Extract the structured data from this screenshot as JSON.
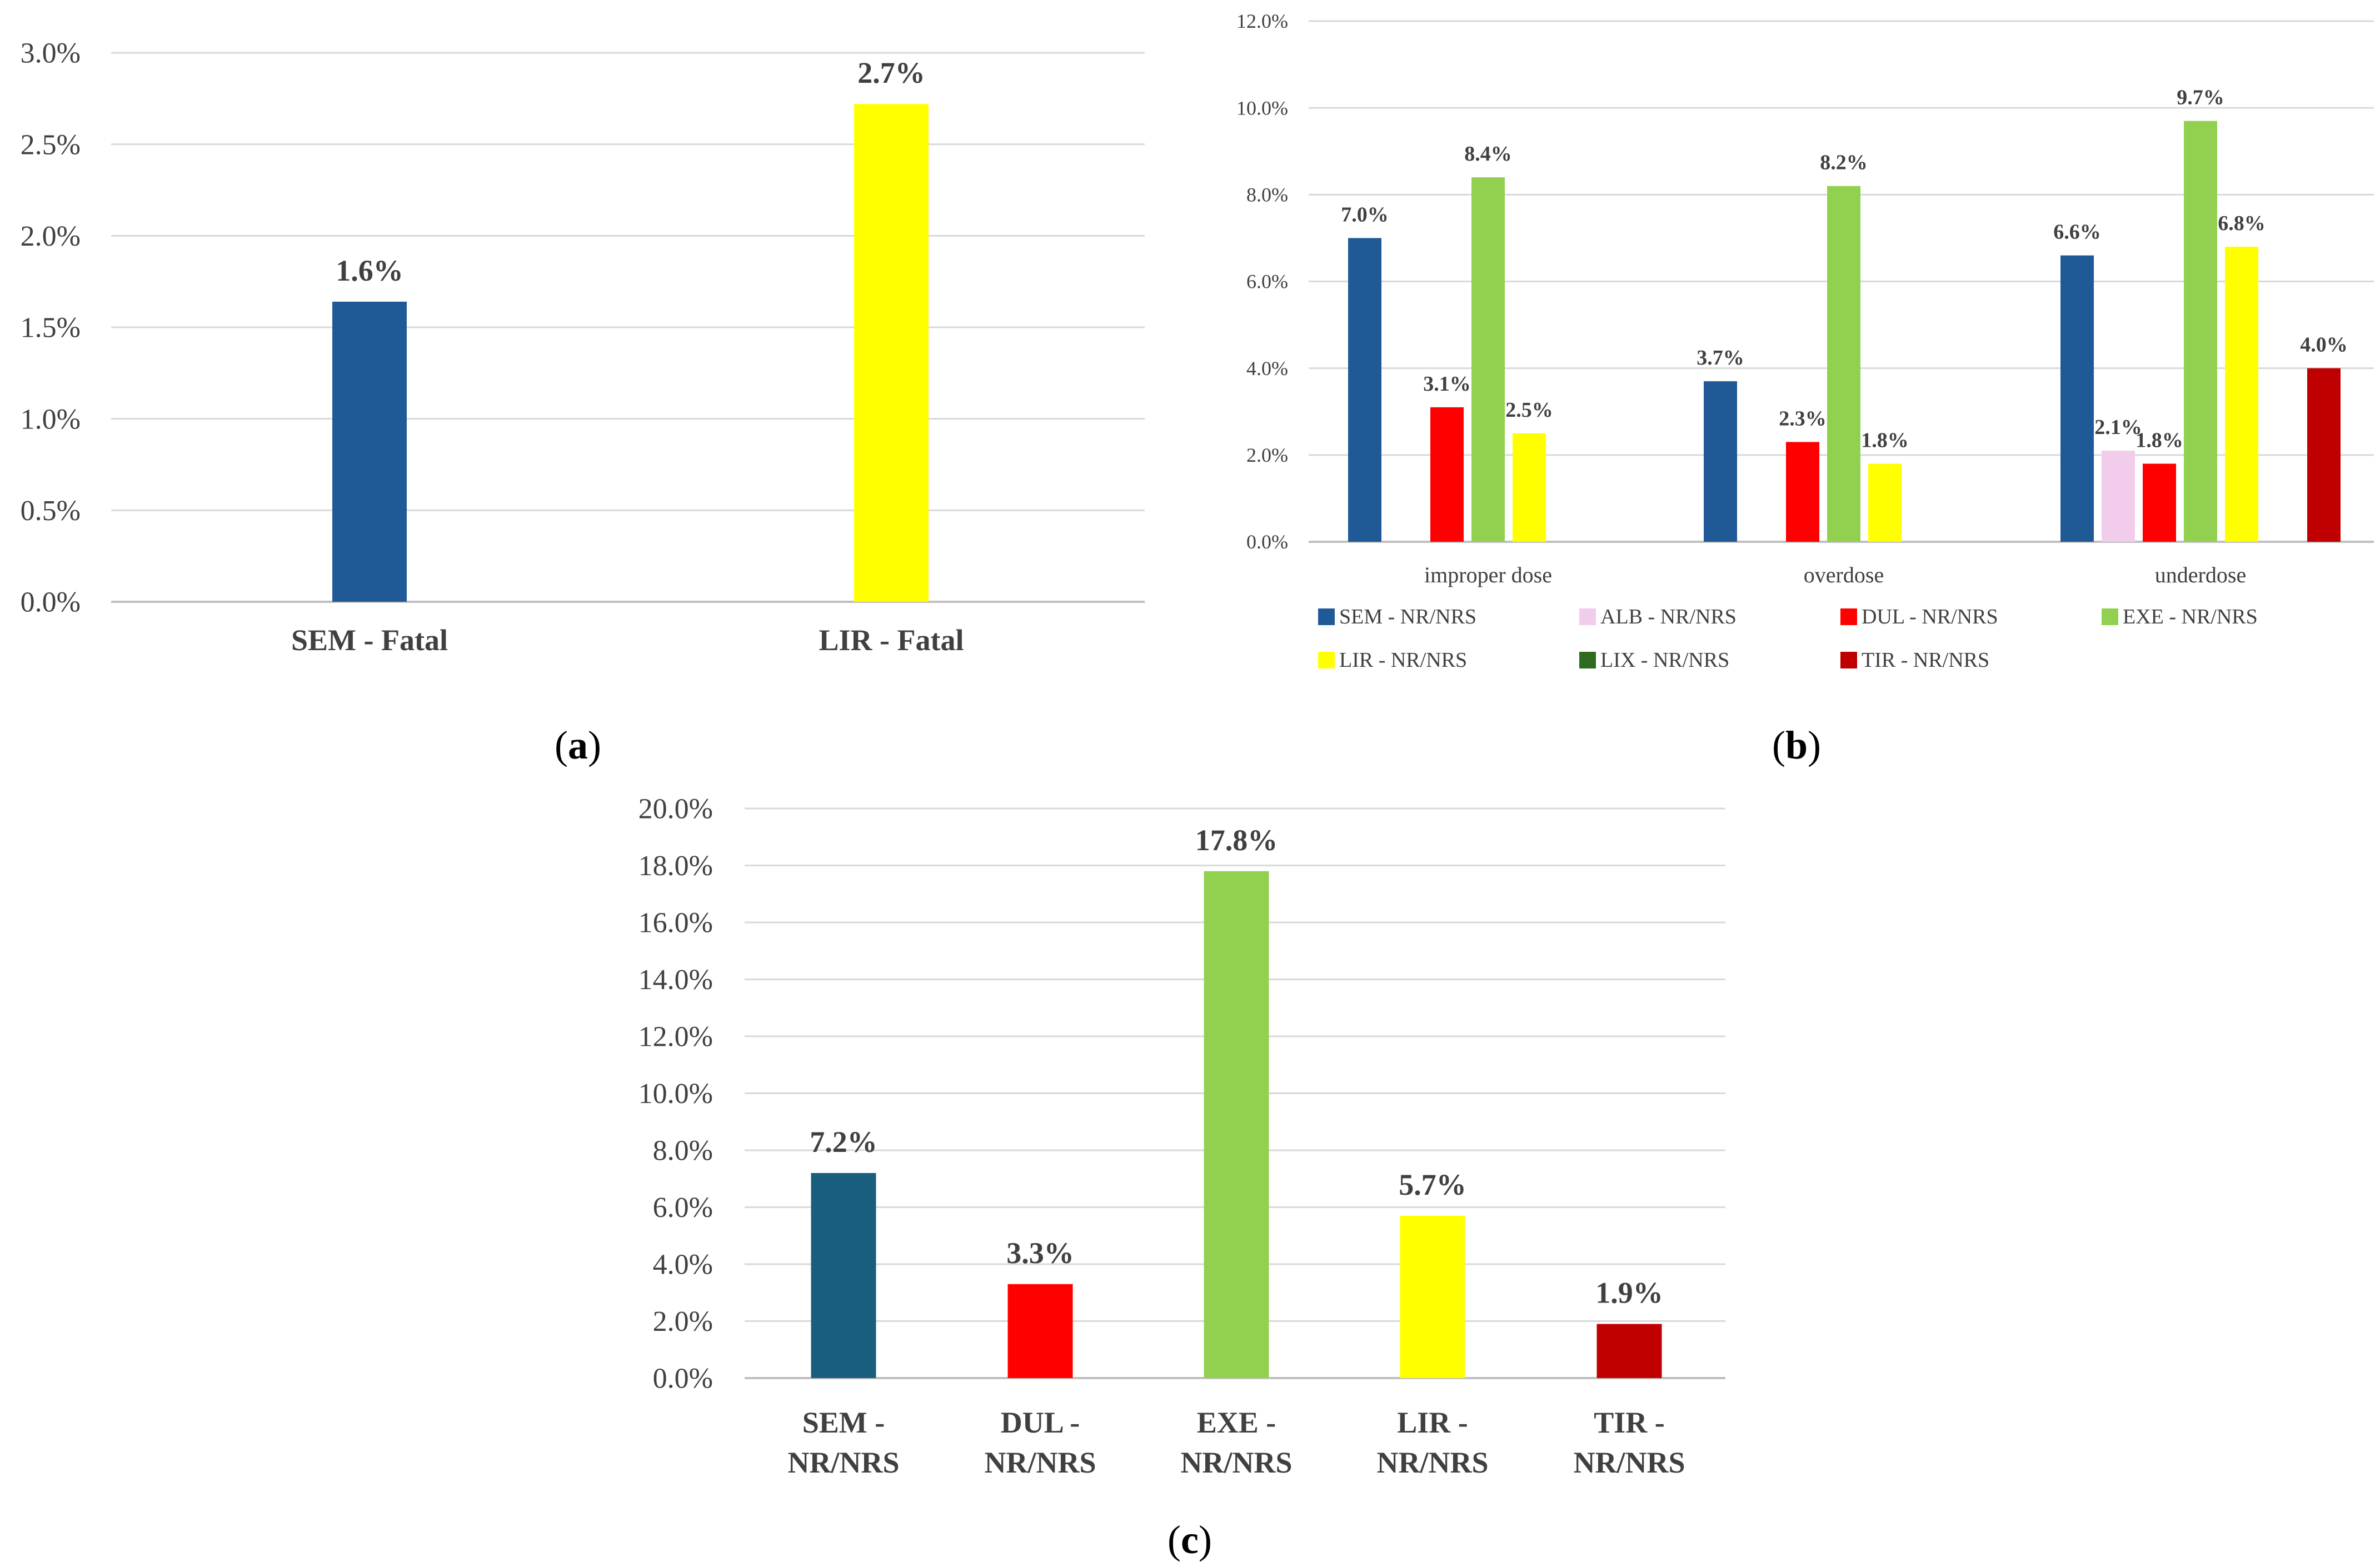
{
  "chart_data": [
    {
      "type": "bar",
      "panel_label": "a",
      "title": "",
      "xlabel": "",
      "ylabel": "",
      "categories": [
        "SEM - Fatal",
        "LIR - Fatal"
      ],
      "values": [
        1.64,
        2.72
      ],
      "data_labels": [
        "1.6%",
        "2.7%"
      ],
      "colors": [
        "#1f5a96",
        "#ffff00"
      ],
      "ylim": [
        0,
        3.0
      ],
      "yticks": [
        0,
        0.5,
        1.0,
        1.5,
        2.0,
        2.5,
        3.0
      ],
      "ytick_labels": [
        "0.0%",
        "0.5%",
        "1.0%",
        "1.5%",
        "2.0%",
        "2.5%",
        "3.0%"
      ],
      "grid": true
    },
    {
      "type": "bar",
      "panel_label": "b",
      "title": "",
      "xlabel": "",
      "ylabel": "",
      "categories": [
        "improper dose",
        "overdose",
        "underdose"
      ],
      "series": [
        {
          "name": "SEM - NR/NRS",
          "color": "#1f5a96",
          "values": [
            7.0,
            3.7,
            6.6
          ],
          "labels": [
            "7.0%",
            "3.7%",
            "6.6%"
          ]
        },
        {
          "name": "ALB - NR/NRS",
          "color": "#f2cceb",
          "values": [
            null,
            null,
            2.1
          ],
          "labels": [
            null,
            null,
            "2.1%"
          ]
        },
        {
          "name": "DUL - NR/NRS",
          "color": "#ff0000",
          "values": [
            3.1,
            2.3,
            1.8
          ],
          "labels": [
            "3.1%",
            "2.3%",
            "1.8%"
          ]
        },
        {
          "name": "EXE - NR/NRS",
          "color": "#92d050",
          "values": [
            8.4,
            8.2,
            9.7
          ],
          "labels": [
            "8.4%",
            "8.2%",
            "9.7%"
          ]
        },
        {
          "name": "LIR - NR/NRS",
          "color": "#ffff00",
          "values": [
            2.5,
            1.8,
            6.8
          ],
          "labels": [
            "2.5%",
            "1.8%",
            "6.8%"
          ]
        },
        {
          "name": "LIX - NR/NRS",
          "color": "#2e6b1e",
          "values": [
            null,
            null,
            null
          ],
          "labels": [
            null,
            null,
            null
          ]
        },
        {
          "name": "TIR - NR/NRS",
          "color": "#c00000",
          "values": [
            null,
            null,
            4.0
          ],
          "labels": [
            null,
            null,
            "4.0%"
          ]
        }
      ],
      "ylim": [
        0,
        12.0
      ],
      "yticks": [
        0,
        2,
        4,
        6,
        8,
        10,
        12
      ],
      "ytick_labels": [
        "0.0%",
        "2.0%",
        "4.0%",
        "6.0%",
        "8.0%",
        "10.0%",
        "12.0%"
      ],
      "legend_position": "bottom",
      "grid": true
    },
    {
      "type": "bar",
      "panel_label": "c",
      "title": "",
      "xlabel": "",
      "ylabel": "",
      "categories": [
        [
          "SEM -",
          "NR/NRS"
        ],
        [
          "DUL -",
          "NR/NRS"
        ],
        [
          "EXE -",
          "NR/NRS"
        ],
        [
          "LIR -",
          "NR/NRS"
        ],
        [
          "TIR -",
          "NR/NRS"
        ]
      ],
      "values": [
        7.2,
        3.3,
        17.8,
        5.7,
        1.9
      ],
      "data_labels": [
        "7.2%",
        "3.3%",
        "17.8%",
        "5.7%",
        "1.9%"
      ],
      "colors": [
        "#1a5e7e",
        "#ff0000",
        "#92d050",
        "#ffff00",
        "#c00000"
      ],
      "ylim": [
        0,
        20.0
      ],
      "yticks": [
        0,
        2,
        4,
        6,
        8,
        10,
        12,
        14,
        16,
        18,
        20
      ],
      "ytick_labels": [
        "0.0%",
        "2.0%",
        "4.0%",
        "6.0%",
        "8.0%",
        "10.0%",
        "12.0%",
        "14.0%",
        "16.0%",
        "18.0%",
        "20.0%"
      ],
      "grid": true
    }
  ]
}
